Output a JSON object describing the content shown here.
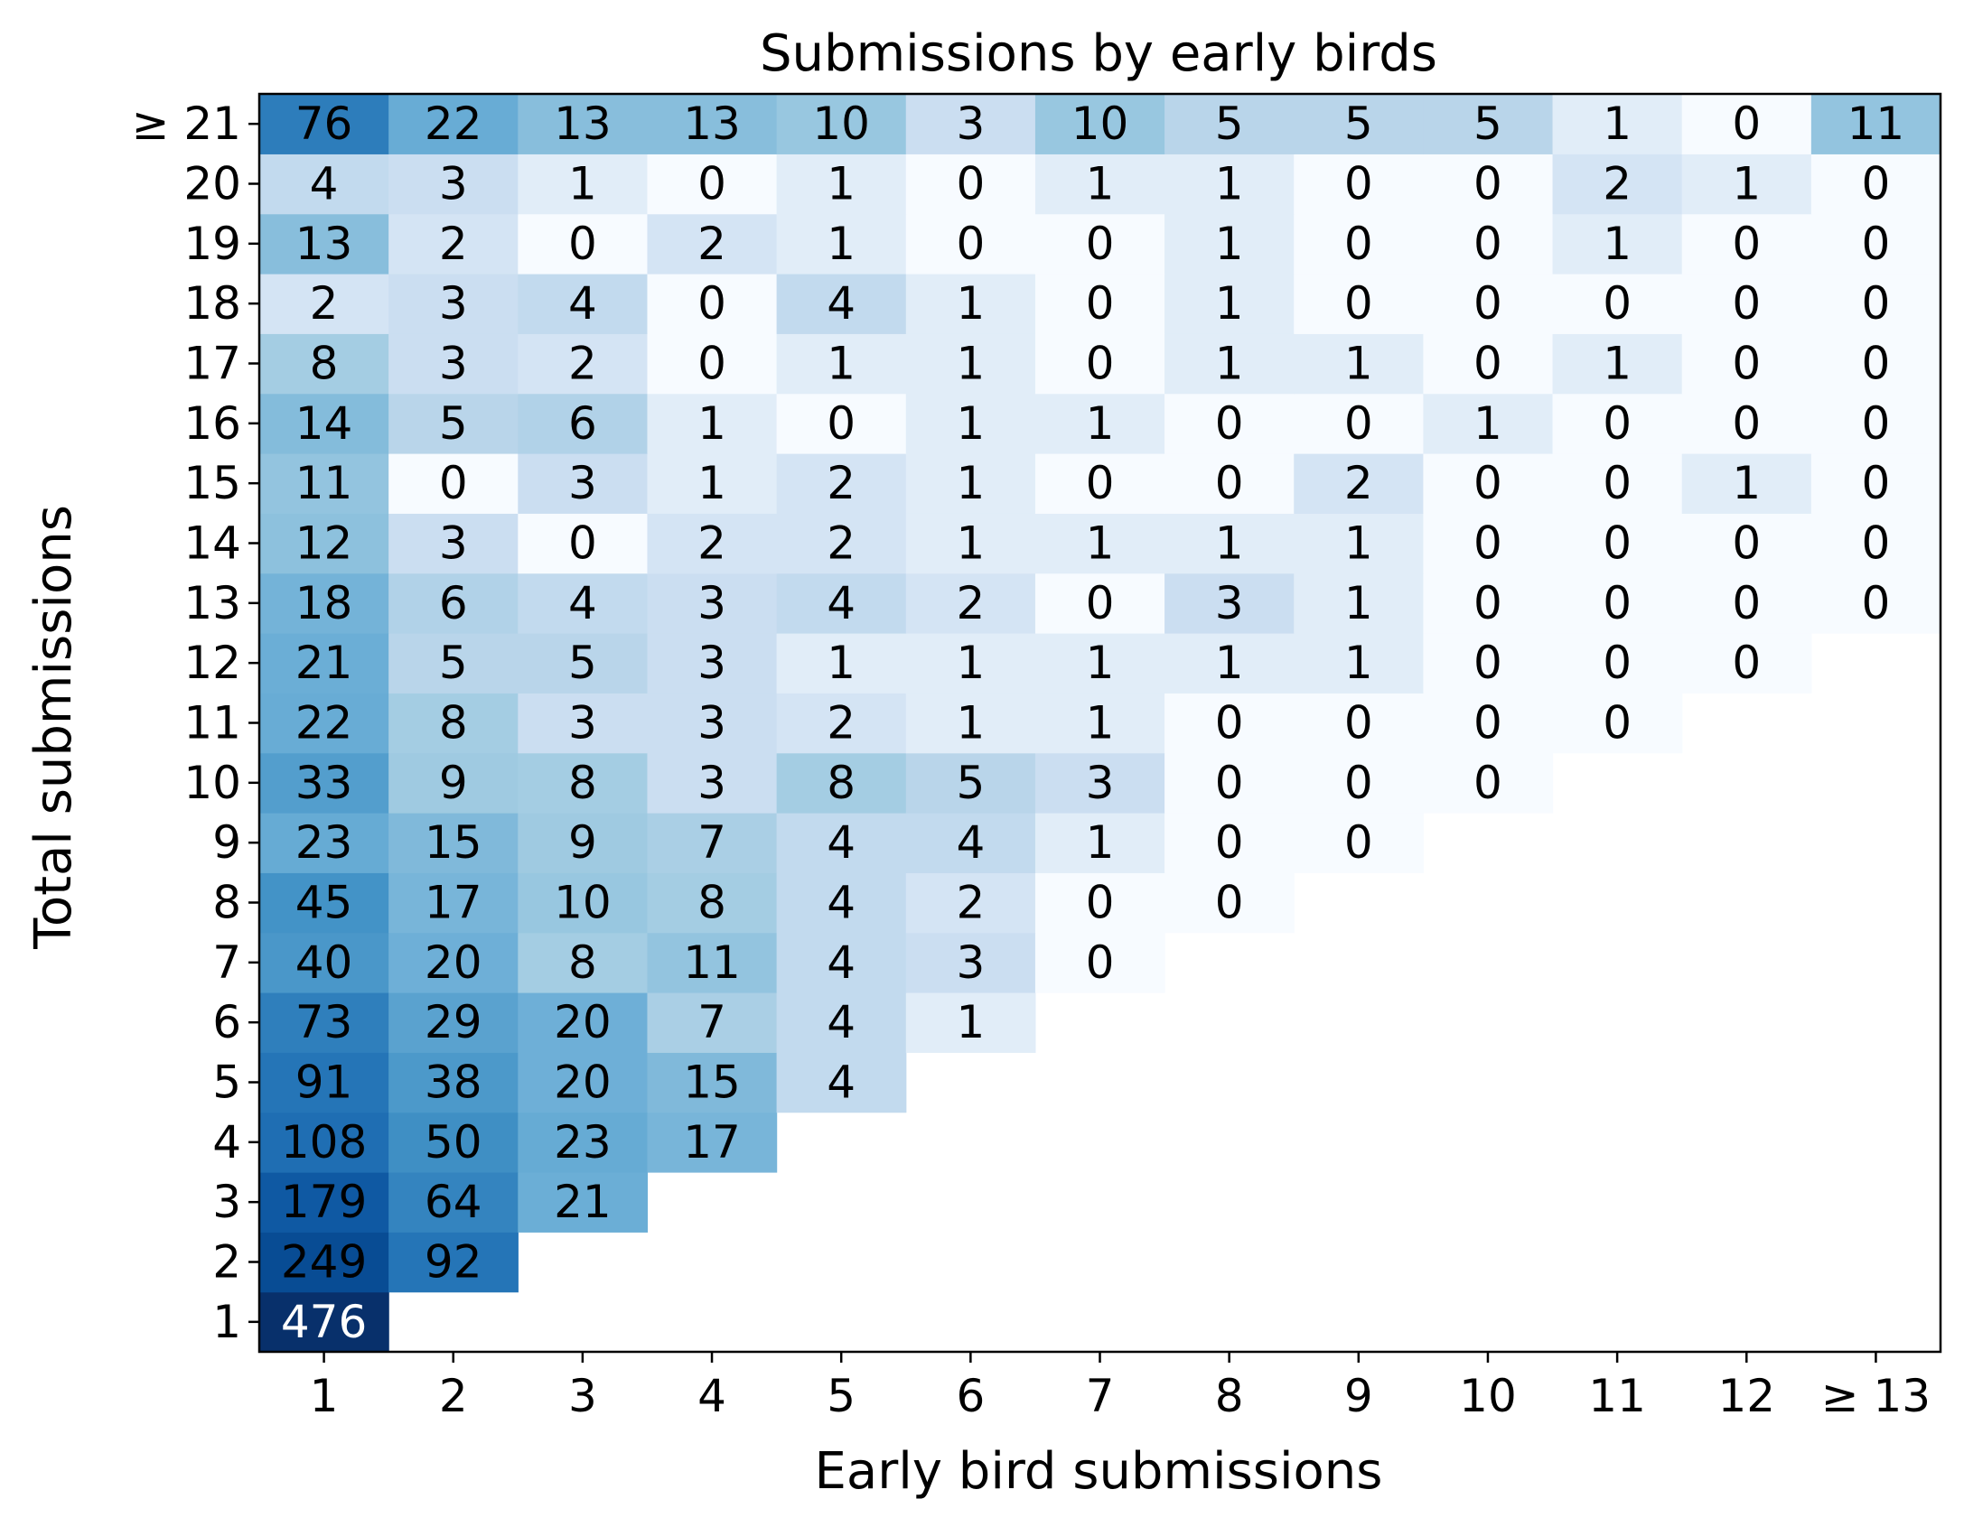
{
  "chart_data": {
    "type": "heatmap",
    "title": "Submissions by early birds",
    "xlabel": "Early bird submissions",
    "ylabel": "Total submissions",
    "x_categories": [
      "1",
      "2",
      "3",
      "4",
      "5",
      "6",
      "7",
      "8",
      "9",
      "10",
      "11",
      "12",
      "≥ 13"
    ],
    "y_categories": [
      "1",
      "2",
      "3",
      "4",
      "5",
      "6",
      "7",
      "8",
      "9",
      "10",
      "11",
      "12",
      "13",
      "14",
      "15",
      "16",
      "17",
      "18",
      "19",
      "20",
      "≥ 21"
    ],
    "colormap": "Blues",
    "vmin": 0,
    "vmax": 476,
    "grid": false,
    "values": [
      [
        476,
        null,
        null,
        null,
        null,
        null,
        null,
        null,
        null,
        null,
        null,
        null,
        null
      ],
      [
        249,
        92,
        null,
        null,
        null,
        null,
        null,
        null,
        null,
        null,
        null,
        null,
        null
      ],
      [
        179,
        64,
        21,
        null,
        null,
        null,
        null,
        null,
        null,
        null,
        null,
        null,
        null
      ],
      [
        108,
        50,
        23,
        17,
        null,
        null,
        null,
        null,
        null,
        null,
        null,
        null,
        null
      ],
      [
        91,
        38,
        20,
        15,
        4,
        null,
        null,
        null,
        null,
        null,
        null,
        null,
        null
      ],
      [
        73,
        29,
        20,
        7,
        4,
        1,
        null,
        null,
        null,
        null,
        null,
        null,
        null
      ],
      [
        40,
        20,
        8,
        11,
        4,
        3,
        0,
        null,
        null,
        null,
        null,
        null,
        null
      ],
      [
        45,
        17,
        10,
        8,
        4,
        2,
        0,
        0,
        null,
        null,
        null,
        null,
        null
      ],
      [
        23,
        15,
        9,
        7,
        4,
        4,
        1,
        0,
        0,
        null,
        null,
        null,
        null
      ],
      [
        33,
        9,
        8,
        3,
        8,
        5,
        3,
        0,
        0,
        0,
        null,
        null,
        null
      ],
      [
        22,
        8,
        3,
        3,
        2,
        1,
        1,
        0,
        0,
        0,
        0,
        null,
        null
      ],
      [
        21,
        5,
        5,
        3,
        1,
        1,
        1,
        1,
        1,
        0,
        0,
        0,
        null
      ],
      [
        18,
        6,
        4,
        3,
        4,
        2,
        0,
        3,
        1,
        0,
        0,
        0,
        0
      ],
      [
        12,
        3,
        0,
        2,
        2,
        1,
        1,
        1,
        1,
        0,
        0,
        0,
        0
      ],
      [
        11,
        0,
        3,
        1,
        2,
        1,
        0,
        0,
        2,
        0,
        0,
        1,
        0
      ],
      [
        14,
        5,
        6,
        1,
        0,
        1,
        1,
        0,
        0,
        1,
        0,
        0,
        0
      ],
      [
        8,
        3,
        2,
        0,
        1,
        1,
        0,
        1,
        1,
        0,
        1,
        0,
        0
      ],
      [
        2,
        3,
        4,
        0,
        4,
        1,
        0,
        1,
        0,
        0,
        0,
        0,
        0
      ],
      [
        13,
        2,
        0,
        2,
        1,
        0,
        0,
        1,
        0,
        0,
        1,
        0,
        0
      ],
      [
        4,
        3,
        1,
        0,
        1,
        0,
        1,
        1,
        0,
        0,
        2,
        1,
        0
      ],
      [
        76,
        22,
        13,
        13,
        10,
        3,
        10,
        5,
        5,
        5,
        1,
        0,
        11
      ]
    ]
  }
}
